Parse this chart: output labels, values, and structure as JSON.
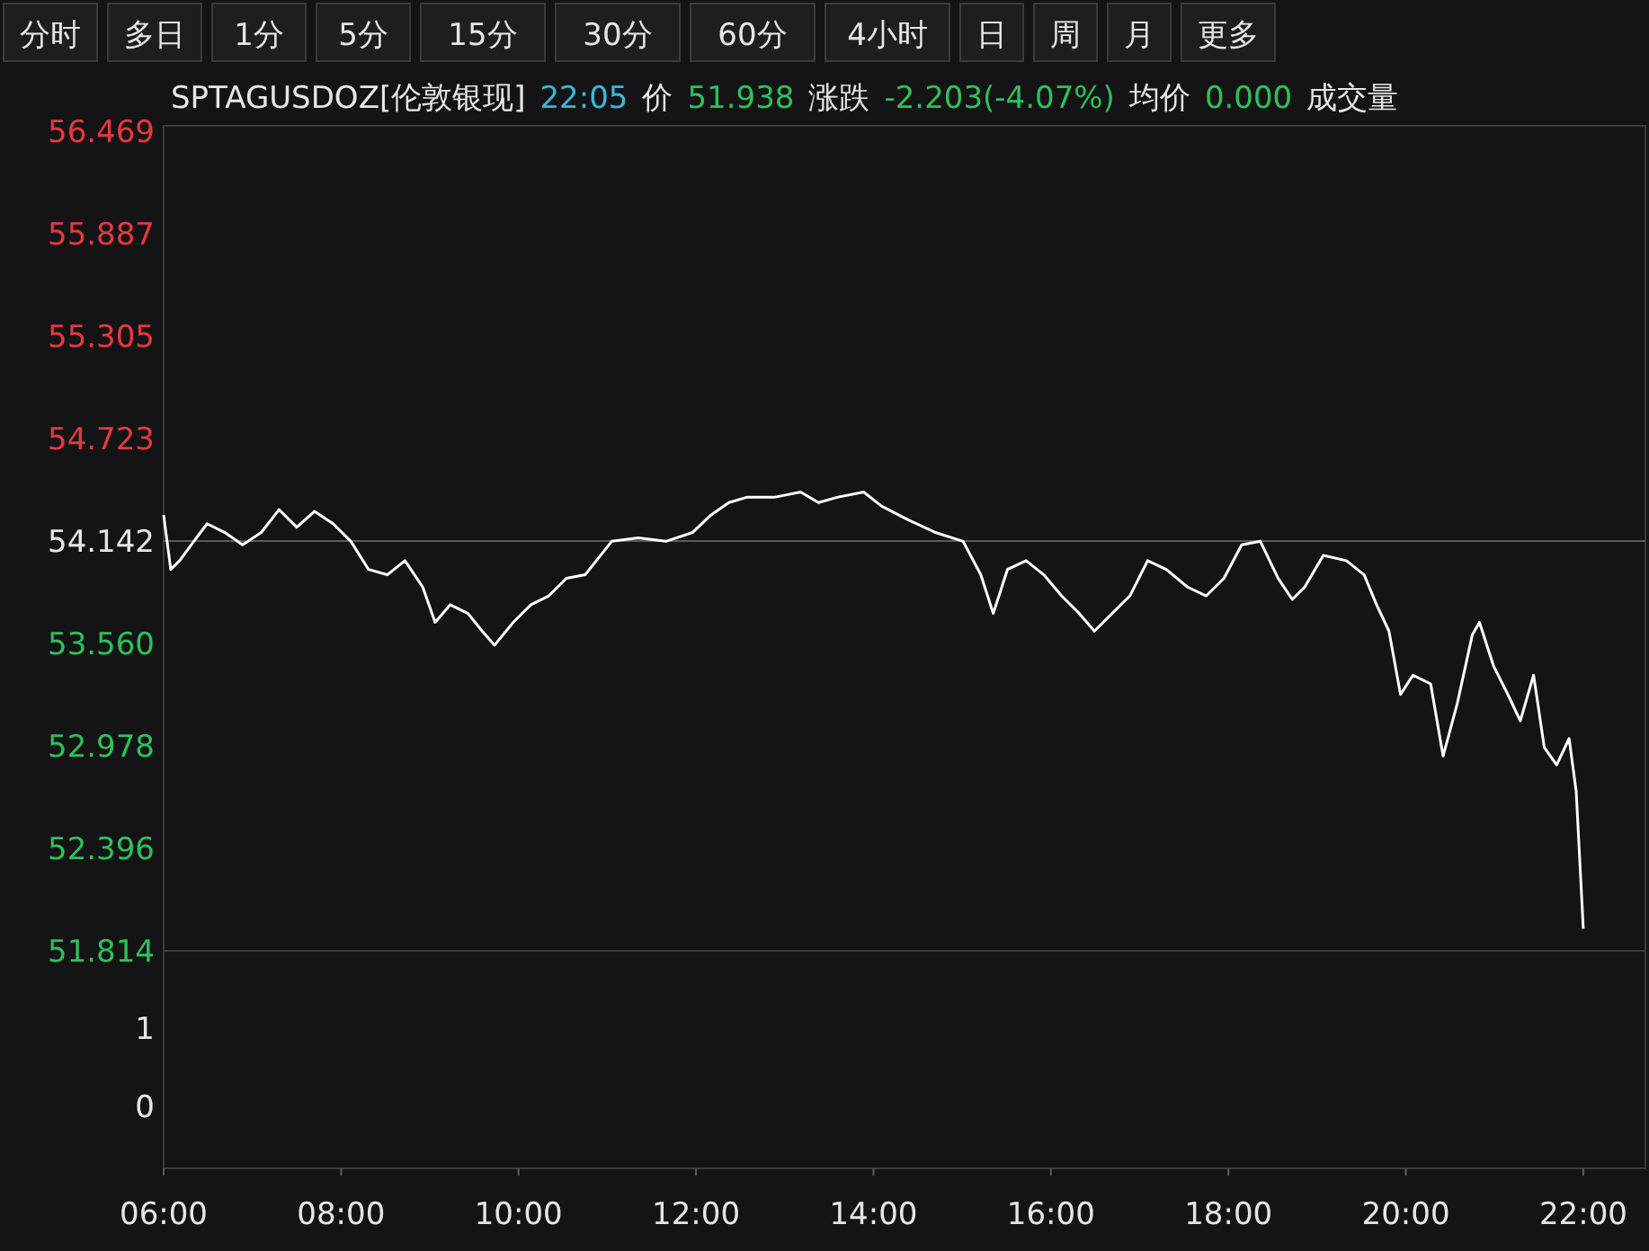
{
  "chart_data": [
    {
      "type": "other",
      "annotations": [
        "分时",
        "多日",
        "1分",
        "5分",
        "15分",
        "30分",
        "60分",
        "4小时",
        "日",
        "周",
        "月",
        "更多"
      ]
    },
    {
      "type": "line",
      "title": "SPTAGUSDOZ[伦敦银现]",
      "subtitle": "22:05",
      "annotations": [
        "价",
        "51.938",
        "涨跌",
        "-2.203(-4.07%)",
        "均价",
        "0.000",
        "成交量"
      ],
      "xlim": [
        6,
        22.7
      ],
      "ylim": [
        51.814,
        56.5
      ],
      "yticks": [
        51.814,
        52.396,
        52.978,
        {
          "value": 53.56,
          "label": "53.560"
        },
        54.142,
        54.723,
        55.305,
        55.887,
        56.469
      ],
      "tick_labels": "y",
      "ref_lines": [
        {
          "axis": "y",
          "value": 54.142,
          "color": "#5a5a5a"
        }
      ],
      "series": [
        {
          "color": "#ffffff",
          "x": [
            6.0,
            6.08,
            6.18,
            6.34,
            6.49,
            6.69,
            6.89,
            7.1,
            7.3,
            7.5,
            7.7,
            7.91,
            8.11,
            8.31,
            8.52,
            8.72,
            8.92,
            9.06,
            9.23,
            9.43,
            9.59,
            9.73,
            9.94,
            10.14,
            10.34,
            10.54,
            10.75,
            11.05,
            11.35,
            11.66,
            11.96,
            12.17,
            12.37,
            12.57,
            12.88,
            13.18,
            13.38,
            13.59,
            13.89,
            14.09,
            14.4,
            14.7,
            15.01,
            15.21,
            15.35,
            15.51,
            15.72,
            15.92,
            16.12,
            16.32,
            16.49,
            16.69,
            16.89,
            17.09,
            17.3,
            17.54,
            17.75,
            17.95,
            18.15,
            18.36,
            18.56,
            18.72,
            18.86,
            19.07,
            19.33,
            19.53,
            19.67,
            19.81,
            19.94,
            20.08,
            20.28,
            20.42,
            20.58,
            20.75,
            20.83,
            20.99,
            21.15,
            21.29,
            21.44,
            21.56,
            21.7,
            21.84,
            21.92,
            22.0
          ],
          "values": [
            54.29,
            53.98,
            54.03,
            54.14,
            54.24,
            54.19,
            54.12,
            54.19,
            54.32,
            54.22,
            54.31,
            54.24,
            54.14,
            53.98,
            53.95,
            54.03,
            53.88,
            53.68,
            53.78,
            53.73,
            53.63,
            53.55,
            53.68,
            53.78,
            53.83,
            53.93,
            53.95,
            54.14,
            54.16,
            54.14,
            54.19,
            54.29,
            54.36,
            54.39,
            54.39,
            54.42,
            54.36,
            54.39,
            54.42,
            54.34,
            54.26,
            54.19,
            54.14,
            53.95,
            53.73,
            53.98,
            54.03,
            53.95,
            53.83,
            53.73,
            53.63,
            53.73,
            53.83,
            54.03,
            53.98,
            53.88,
            53.83,
            53.93,
            54.12,
            54.14,
            53.93,
            53.81,
            53.88,
            54.06,
            54.03,
            53.95,
            53.78,
            53.63,
            53.27,
            53.38,
            53.33,
            52.92,
            53.22,
            53.61,
            53.68,
            53.43,
            53.27,
            53.12,
            53.38,
            52.97,
            52.87,
            53.02,
            52.72,
            51.94
          ]
        }
      ]
    },
    {
      "type": "bar",
      "xlim": [
        6,
        22.7
      ],
      "ylim": [
        -0.8,
        2
      ],
      "yticks": [
        0,
        1
      ],
      "xticks": [
        {
          "value": 6,
          "label": "06:00"
        },
        {
          "value": 8,
          "label": "08:00"
        },
        {
          "value": 10,
          "label": "10:00"
        },
        {
          "value": 12,
          "label": "12:00"
        },
        {
          "value": 14,
          "label": "14:00"
        },
        {
          "value": 16,
          "label": "16:00"
        },
        {
          "value": 18,
          "label": "18:00"
        },
        {
          "value": 20,
          "label": "20:00"
        },
        {
          "value": 22,
          "label": "22:00"
        }
      ]
    }
  ]
}
